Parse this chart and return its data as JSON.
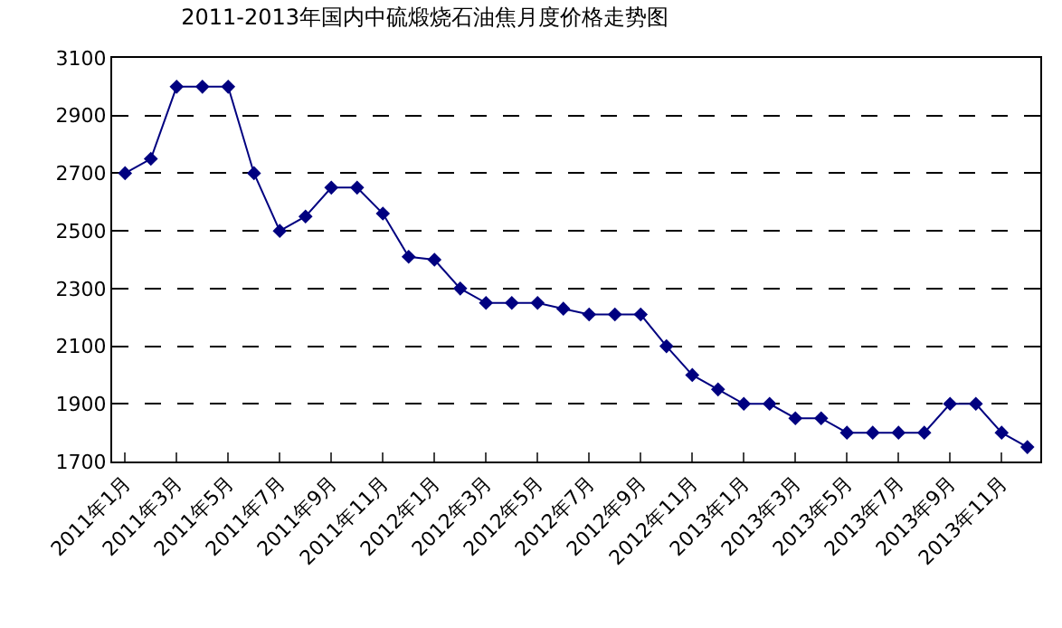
{
  "chart_data": {
    "type": "line",
    "title": "2011-2013年国内中硫煅烧石油焦月度价格走势图",
    "categories": [
      "2011年1月",
      null,
      "2011年3月",
      null,
      "2011年5月",
      null,
      "2011年7月",
      null,
      "2011年9月",
      null,
      "2011年11月",
      null,
      "2012年1月",
      null,
      "2012年3月",
      null,
      "2012年5月",
      null,
      "2012年7月",
      null,
      "2012年9月",
      null,
      "2012年11月",
      null,
      "2013年1月",
      null,
      "2013年3月",
      null,
      "2013年5月",
      null,
      "2013年7月",
      null,
      "2013年9月",
      null,
      "2013年11月",
      null
    ],
    "series": [
      {
        "color": "#000080",
        "values": [
          2700,
          2750,
          3000,
          3000,
          3000,
          2700,
          2500,
          2550,
          2650,
          2650,
          2560,
          2410,
          2400,
          2300,
          2250,
          2250,
          2250,
          2230,
          2210,
          2210,
          2210,
          2100,
          2000,
          1950,
          1900,
          1900,
          1850,
          1850,
          1800,
          1800,
          1800,
          1800,
          1900,
          1900,
          1800,
          1750
        ]
      }
    ],
    "ylim": [
      1700,
      3100
    ],
    "yticks": [
      1700,
      1900,
      2100,
      2300,
      2500,
      2700,
      2900,
      3100
    ],
    "grid": "y",
    "marker": "diamond",
    "line_style": "solid"
  }
}
